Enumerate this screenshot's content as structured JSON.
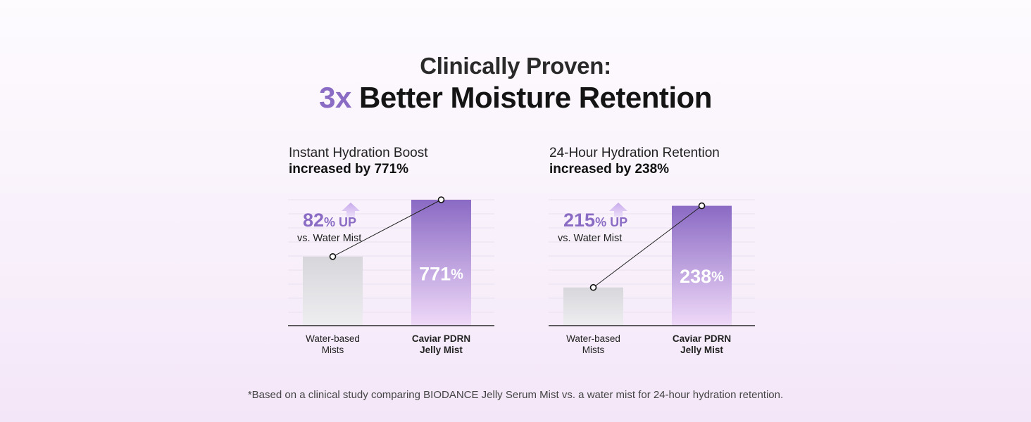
{
  "header": {
    "line1": "Clinically Proven:",
    "accent": "3x",
    "line2_rest": "Better Moisture Retention"
  },
  "colors": {
    "accent": "#8b6cc4",
    "bar_purple_top": "#8a6ac4",
    "bar_purple_bottom": "#efd9f8",
    "bar_gray_top": "#d7d7db",
    "bar_gray_bottom": "#eeedf0"
  },
  "chart_data": [
    {
      "type": "bar",
      "subtitle": "Instant Hydration Boost",
      "title": "increased by 771%",
      "categories": [
        "Water-based Mists",
        "Caviar PDRN Jelly Mist"
      ],
      "category_lines": [
        [
          "Water-based",
          "Mists"
        ],
        [
          "Caviar PDRN",
          "Jelly Mist"
        ]
      ],
      "values": [
        423,
        771
      ],
      "value_labels": [
        "",
        "771%"
      ],
      "ylim": [
        0,
        771
      ],
      "grid": true,
      "annotation": {
        "number": "82",
        "unit": "% UP",
        "text": "vs. Water Mist"
      }
    },
    {
      "type": "bar",
      "subtitle": "24-Hour Hydration Retention",
      "title": "increased by 238%",
      "categories": [
        "Water-based Mists",
        "Caviar PDRN Jelly Mist"
      ],
      "category_lines": [
        [
          "Water-based",
          "Mists"
        ],
        [
          "Caviar PDRN",
          "Jelly Mist"
        ]
      ],
      "values": [
        75.8,
        238
      ],
      "value_labels": [
        "",
        "238%"
      ],
      "ylim": [
        0,
        250
      ],
      "grid": true,
      "annotation": {
        "number": "215",
        "unit": "% UP",
        "text": "vs. Water Mist"
      }
    }
  ],
  "footnote": "*Based on a clinical study comparing BIODANCE Jelly Serum Mist vs. a water mist for 24-hour hydration retention."
}
